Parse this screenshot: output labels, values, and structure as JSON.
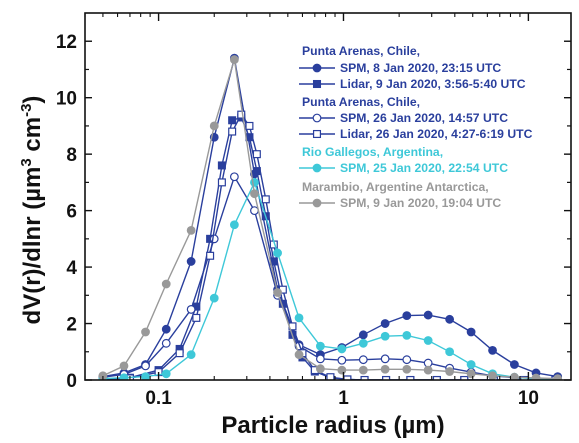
{
  "chart_data": {
    "type": "line",
    "xscale": "log",
    "xlim": [
      0.04,
      17
    ],
    "ylim": [
      0,
      13
    ],
    "xlabel": "Particle radius (µm)",
    "ylabel_main": "dV(r)/dlnr (µm",
    "ylabel_sup1": "3",
    "ylabel_mid": " cm",
    "ylabel_sup2": "-3",
    "ylabel_end": ")",
    "xticks": [
      0.1,
      1,
      10
    ],
    "xtick_labels": [
      "0.1",
      "1",
      "10"
    ],
    "yticks": [
      0,
      2,
      4,
      6,
      8,
      10,
      12
    ],
    "ytick_labels": [
      "0",
      "2",
      "4",
      "6",
      "8",
      "10",
      "12"
    ],
    "grid": false,
    "legend_position": "top-right",
    "legend_headers": [
      {
        "text": "Punta Arenas, Chile,",
        "color": "#2a3f9d"
      },
      {
        "text": "Punta Arenas, Chile,",
        "color": "#2a3f9d"
      },
      {
        "text": "Rio Gallegos, Argentina,",
        "color": "#3ec8d8"
      },
      {
        "text": "Marambio, Argentine Antarctica,",
        "color": "#999999"
      }
    ],
    "series": [
      {
        "name": "SPM, 8 Jan 2020, 23:15 UTC",
        "color": "#2a3f9d",
        "marker": "circle-filled",
        "x": [
          0.05,
          0.065,
          0.085,
          0.11,
          0.15,
          0.2,
          0.257,
          0.33,
          0.44,
          0.575,
          0.75,
          0.98,
          1.28,
          1.68,
          2.2,
          2.87,
          3.75,
          4.9,
          6.4,
          8.4,
          11,
          14.4
        ],
        "y": [
          0.12,
          0.25,
          0.55,
          1.8,
          4.2,
          8.6,
          11.4,
          7.3,
          3.2,
          1.25,
          0.9,
          1.15,
          1.6,
          2.0,
          2.28,
          2.3,
          2.15,
          1.7,
          1.05,
          0.55,
          0.25,
          0.12
        ]
      },
      {
        "name": "Lidar, 9 Jan 2020, 3:56-5:40 UTC",
        "color": "#2a3f9d",
        "marker": "square-filled",
        "x": [
          0.05,
          0.07,
          0.1,
          0.13,
          0.16,
          0.19,
          0.22,
          0.25,
          0.28,
          0.31,
          0.34,
          0.38,
          0.42,
          0.47,
          0.53,
          0.6,
          0.7,
          0.85,
          1.05,
          1.3,
          1.7,
          2.3,
          3.2,
          4.5,
          6.5,
          9.5,
          14
        ],
        "y": [
          0.02,
          0.08,
          0.35,
          1.1,
          2.6,
          5.0,
          7.6,
          9.2,
          9.3,
          8.6,
          7.4,
          5.8,
          4.2,
          2.7,
          1.6,
          0.8,
          0.3,
          0.08,
          0.02,
          0.0,
          0.0,
          0.0,
          0.0,
          0.0,
          0.0,
          0.0,
          0.0
        ]
      },
      {
        "name": "SPM, 26 Jan 2020, 14:57 UTC",
        "color": "#2a3f9d",
        "marker": "circle-open",
        "x": [
          0.05,
          0.065,
          0.085,
          0.11,
          0.15,
          0.2,
          0.257,
          0.33,
          0.44,
          0.575,
          0.75,
          0.98,
          1.28,
          1.68,
          2.2,
          2.87,
          3.75,
          4.9,
          6.4,
          8.4,
          11,
          14.4
        ],
        "y": [
          0.1,
          0.2,
          0.5,
          1.3,
          2.5,
          5.0,
          7.2,
          6.0,
          3.0,
          1.2,
          0.75,
          0.7,
          0.72,
          0.75,
          0.72,
          0.6,
          0.42,
          0.28,
          0.15,
          0.08,
          0.04,
          0.02
        ]
      },
      {
        "name": "Lidar, 26 Jan 2020, 4:27-6:19 UTC",
        "color": "#2a3f9d",
        "marker": "square-open",
        "x": [
          0.05,
          0.07,
          0.1,
          0.13,
          0.16,
          0.19,
          0.22,
          0.25,
          0.28,
          0.31,
          0.34,
          0.38,
          0.42,
          0.47,
          0.53,
          0.6,
          0.7,
          0.85,
          1.05,
          1.3,
          1.7,
          2.3,
          3.2,
          4.5,
          6.5,
          9.5,
          14
        ],
        "y": [
          0.02,
          0.06,
          0.28,
          0.95,
          2.2,
          4.4,
          7.0,
          8.8,
          9.4,
          9.0,
          8.0,
          6.4,
          4.8,
          3.2,
          1.9,
          0.95,
          0.35,
          0.1,
          0.02,
          0.0,
          0.0,
          0.0,
          0.0,
          0.0,
          0.0,
          0.0,
          0.0
        ]
      },
      {
        "name": "SPM, 25 Jan 2020, 22:54 UTC",
        "color": "#3ec8d8",
        "marker": "circle-filled",
        "x": [
          0.05,
          0.065,
          0.085,
          0.11,
          0.15,
          0.2,
          0.257,
          0.33,
          0.44,
          0.575,
          0.75,
          0.98,
          1.28,
          1.68,
          2.2,
          2.87,
          3.75,
          4.9,
          6.4,
          8.4,
          11,
          14.4
        ],
        "y": [
          0.05,
          0.08,
          0.12,
          0.22,
          0.9,
          2.9,
          5.5,
          7.0,
          4.5,
          2.2,
          1.2,
          1.1,
          1.3,
          1.55,
          1.58,
          1.4,
          1.0,
          0.55,
          0.22,
          0.1,
          0.04,
          0.02
        ]
      },
      {
        "name": "SPM, 9 Jan 2020, 19:04 UTC",
        "color": "#999999",
        "marker": "circle-filled",
        "x": [
          0.05,
          0.065,
          0.085,
          0.11,
          0.15,
          0.2,
          0.257,
          0.33,
          0.44,
          0.575,
          0.75,
          0.98,
          1.28,
          1.68,
          2.2,
          2.87,
          3.75,
          4.9,
          6.4,
          8.4,
          11,
          14.4
        ],
        "y": [
          0.15,
          0.5,
          1.7,
          3.4,
          5.3,
          9.0,
          11.35,
          6.6,
          3.1,
          0.9,
          0.4,
          0.35,
          0.35,
          0.38,
          0.38,
          0.35,
          0.3,
          0.22,
          0.15,
          0.1,
          0.07,
          0.05
        ]
      }
    ]
  }
}
